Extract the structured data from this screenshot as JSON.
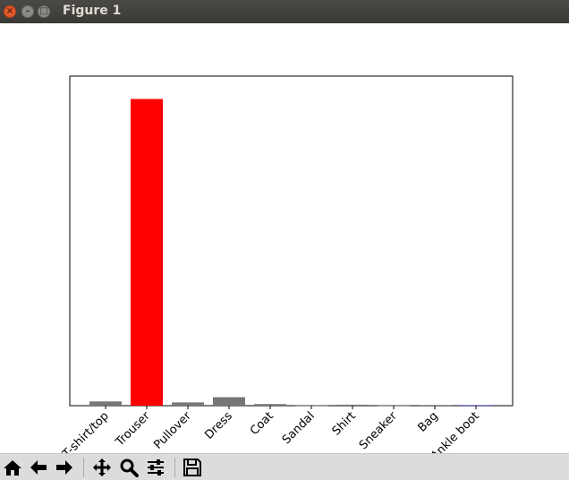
{
  "window": {
    "title": "Figure 1",
    "close_glyph": "×",
    "minimize_glyph": "–",
    "maximize_glyph": "□"
  },
  "toolbar": {
    "buttons": [
      {
        "name": "home",
        "icon": "home-icon"
      },
      {
        "name": "back",
        "icon": "back-arrow-icon"
      },
      {
        "name": "forward",
        "icon": "forward-arrow-icon"
      },
      {
        "name": "pan",
        "icon": "pan-move-icon"
      },
      {
        "name": "zoom",
        "icon": "zoom-magnifier-icon"
      },
      {
        "name": "configure-subplots",
        "icon": "sliders-icon"
      },
      {
        "name": "save",
        "icon": "save-floppy-icon"
      }
    ]
  },
  "chart_data": {
    "type": "bar",
    "categories": [
      "T-shirt/top",
      "Trouser",
      "Pullover",
      "Dress",
      "Coat",
      "Sandal",
      "Shirt",
      "Sneaker",
      "Bag",
      "Ankle boot"
    ],
    "values": [
      0.013,
      0.94,
      0.01,
      0.026,
      0.005,
      0.0005,
      0.003,
      0.0005,
      0.002,
      0.001
    ],
    "ylim": [
      0,
      1.0
    ],
    "highlight_index": 1,
    "colors": {
      "default": "#777777",
      "highlight": "#ff0000",
      "ankle_boot": "#0000ff"
    },
    "title": "",
    "xlabel": "",
    "ylabel": "",
    "grid": false
  }
}
